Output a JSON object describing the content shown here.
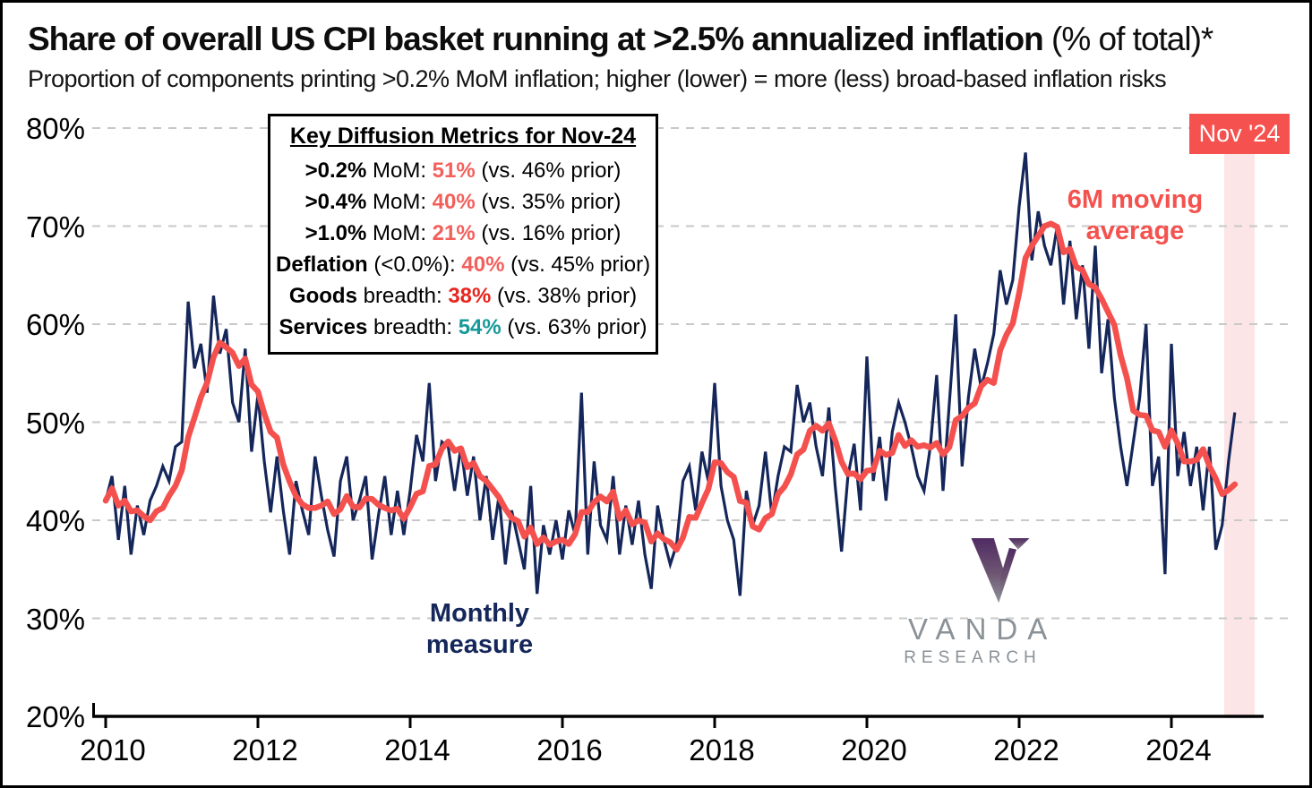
{
  "header": {
    "title_bold": "Share of overall US CPI basket running at >2.5% annualized inflation",
    "title_regular": " (% of total)*",
    "subtitle": "Proportion of components printing >0.2% MoM inflation; higher (lower) = more (less) broad-based inflation risks"
  },
  "metrics_box": {
    "title": "Key Diffusion Metrics for Nov-24",
    "rows": [
      {
        "lead": ">0.2%",
        "mid": " MoM: ",
        "value": "51%",
        "value_color": "#F2605C",
        "tail": " (vs. 46% prior)"
      },
      {
        "lead": ">0.4%",
        "mid": " MoM: ",
        "value": "40%",
        "value_color": "#F2605C",
        "tail": " (vs. 35% prior)"
      },
      {
        "lead": ">1.0%",
        "mid": " MoM: ",
        "value": "21%",
        "value_color": "#F2605C",
        "tail": " (vs. 16% prior)"
      },
      {
        "lead": "Deflation",
        "mid": " (<0.0%): ",
        "value": "40%",
        "value_color": "#F2605C",
        "tail": " (vs. 45% prior)"
      },
      {
        "lead": "Goods",
        "mid": " breadth: ",
        "value": "38%",
        "value_color": "#E8251F",
        "tail": " (vs. 38% prior)"
      },
      {
        "lead": "Services",
        "mid": " breadth: ",
        "value": "54%",
        "value_color": "#17999A",
        "tail": " (vs. 63% prior)"
      }
    ]
  },
  "annotations": {
    "ma_label_line1": "6M moving",
    "ma_label_line2": "average",
    "monthly_label_line1": "Monthly",
    "monthly_label_line2": "measure",
    "period_flag": "Nov '24"
  },
  "logo": {
    "word": "VANDA",
    "sub": "RESEARCH"
  },
  "colors": {
    "monthly_line": "#14265A",
    "ma_line": "#F4514E",
    "highlight_band": "#FCE5E7",
    "flag_background": "#F5524F",
    "gridline": "#C8C8C8"
  },
  "chart_data": {
    "type": "line",
    "title": "Share of overall US CPI basket running at >2.5% annualized inflation (% of total)*",
    "x_start": "2010-01",
    "x_end": "2024-11",
    "frequency": "monthly",
    "x_tick_labels": [
      "2010",
      "2012",
      "2014",
      "2016",
      "2018",
      "2020",
      "2022",
      "2024"
    ],
    "x_tick_years": [
      2010,
      2012,
      2014,
      2016,
      2018,
      2020,
      2022,
      2024
    ],
    "ylim": [
      20,
      80
    ],
    "y_ticks": [
      20,
      30,
      40,
      50,
      60,
      70,
      80
    ],
    "y_tick_labels": [
      "20%",
      "30%",
      "40%",
      "50%",
      "60%",
      "70%",
      "80%"
    ],
    "grid": "dashed horizontal",
    "highlight": {
      "label": "Nov '24",
      "period": "2024-11"
    },
    "series": [
      {
        "name": "Monthly measure",
        "color": "#14265A",
        "values": [
          42,
          44.5,
          38,
          43.5,
          36.5,
          41.5,
          38.5,
          42,
          43.5,
          45.5,
          44,
          47.5,
          48,
          62.3,
          55.5,
          58,
          53,
          62.9,
          57,
          59.5,
          52,
          50,
          57.5,
          47,
          52.8,
          46,
          40.8,
          46.5,
          41,
          36.5,
          44,
          41,
          38.5,
          46.5,
          42.5,
          39,
          36.3,
          44,
          46.5,
          40,
          42,
          44.5,
          36,
          40.5,
          44.5,
          38.5,
          43,
          38.5,
          43,
          48.7,
          46,
          54,
          44,
          48,
          47.5,
          43,
          47.5,
          42.5,
          46.5,
          40,
          44.5,
          38,
          42.5,
          35.5,
          41,
          38,
          35,
          43.5,
          32.5,
          39.5,
          36.5,
          40,
          36,
          41,
          38.5,
          53,
          36.5,
          46,
          39.5,
          38,
          44.5,
          36.5,
          41.5,
          37.5,
          42,
          36.5,
          33,
          41.5,
          38,
          35.5,
          37.5,
          44,
          45.5,
          41,
          47,
          44,
          54,
          43.5,
          40,
          38,
          32.3,
          43,
          39.5,
          41.5,
          47,
          40.5,
          44.5,
          47.5,
          47,
          53.8,
          50,
          52,
          47.5,
          44.5,
          51.5,
          43.5,
          36.8,
          44.5,
          47.8,
          41,
          56.7,
          44,
          48.5,
          42,
          49,
          52,
          50,
          47.5,
          44.5,
          43,
          47.5,
          54.8,
          43,
          52,
          61,
          45.5,
          52.5,
          57.5,
          53.5,
          56,
          59,
          65.5,
          62,
          64.5,
          72,
          77.5,
          66.5,
          71.5,
          68,
          66,
          70,
          62,
          68.5,
          60.5,
          66,
          57.5,
          68,
          55,
          60.5,
          52.5,
          47.5,
          43.5,
          48,
          52.5,
          60,
          43.5,
          46.5,
          34.5,
          58,
          44.5,
          49,
          43.5,
          47.5,
          41,
          47.5,
          37,
          39.5,
          46,
          51
        ]
      },
      {
        "name": "6M moving average",
        "color": "#F4514E",
        "derived": "trailing 6-month mean of Monthly measure"
      }
    ]
  }
}
